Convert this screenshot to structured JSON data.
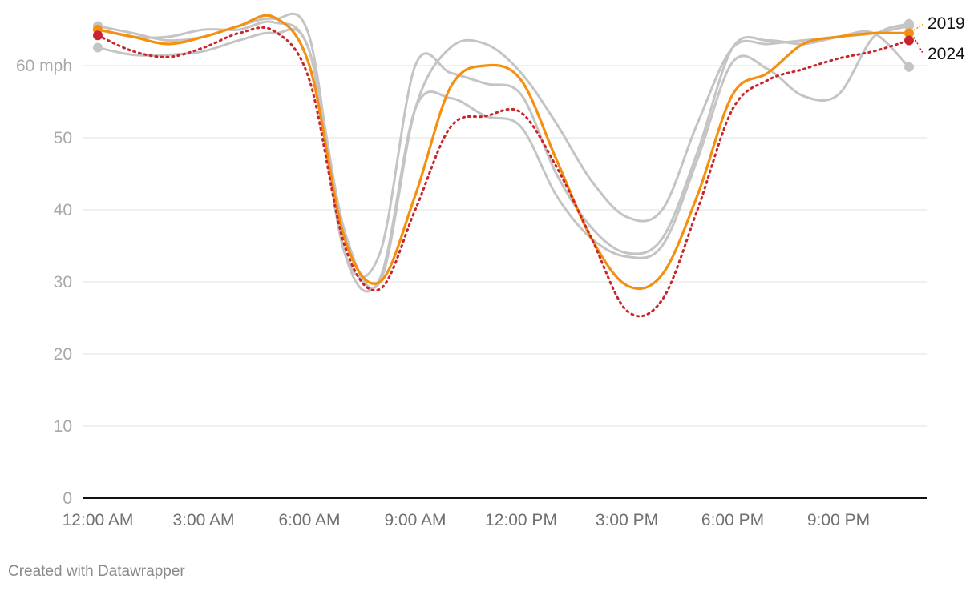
{
  "chart_data": {
    "type": "line",
    "y_unit_suffix": " mph",
    "ylim": [
      0,
      70
    ],
    "y_ticks": [
      0,
      10,
      20,
      30,
      40,
      50,
      60
    ],
    "x_ticks": [
      "12:00 AM",
      "3:00 AM",
      "6:00 AM",
      "9:00 AM",
      "12:00 PM",
      "3:00 PM",
      "6:00 PM",
      "9:00 PM"
    ],
    "x_hours": [
      0,
      1,
      2,
      3,
      4,
      5,
      6,
      7,
      8,
      9,
      10,
      11,
      12,
      13,
      14,
      15,
      16,
      17,
      18,
      19,
      20,
      21,
      22,
      23
    ],
    "grid": true,
    "colors": {
      "highlight": "#f5900e",
      "current": "#c8252c",
      "other": "#c4c4c4"
    },
    "series": [
      {
        "values": [
          65.5,
          64.5,
          63.5,
          64.0,
          65.5,
          66.5,
          64.0,
          34.0,
          30.5,
          54.0,
          55.5,
          53.0,
          51.5,
          42.0,
          36.0,
          33.5,
          35.0,
          47.0,
          60.5,
          59.5,
          55.8,
          56.0,
          64.0,
          65.8
        ],
        "style": "other"
      },
      {
        "values": [
          62.5,
          61.5,
          61.5,
          62.0,
          63.5,
          64.5,
          62.0,
          34.0,
          34.0,
          60.0,
          59.0,
          57.5,
          56.0,
          45.0,
          37.5,
          34.0,
          36.0,
          48.0,
          62.5,
          63.5,
          63.0,
          64.0,
          64.5,
          59.8
        ],
        "style": "other"
      },
      {
        "values": [
          65.0,
          64.0,
          64.0,
          65.0,
          65.0,
          66.0,
          62.0,
          37.0,
          30.0,
          54.0,
          62.5,
          63.0,
          59.0,
          52.0,
          44.0,
          39.0,
          40.0,
          52.0,
          62.5,
          63.0,
          63.5,
          64.0,
          64.5,
          65.5
        ],
        "style": "other"
      },
      {
        "name": "2019",
        "values": [
          65.0,
          64.0,
          63.0,
          64.0,
          65.5,
          66.7,
          60.0,
          36.0,
          30.0,
          42.0,
          57.0,
          60.0,
          58.0,
          47.0,
          36.0,
          29.5,
          31.0,
          42.0,
          56.0,
          59.0,
          63.0,
          64.0,
          64.5,
          64.5
        ],
        "style": "highlight"
      },
      {
        "name": "2024",
        "values": [
          64.2,
          62.0,
          61.2,
          62.5,
          64.5,
          64.8,
          58.0,
          35.0,
          29.0,
          40.0,
          51.5,
          53.0,
          53.5,
          46.0,
          36.0,
          26.0,
          27.5,
          40.0,
          54.0,
          58.0,
          59.5,
          61.0,
          62.0,
          63.5
        ],
        "style": "current"
      }
    ]
  },
  "footer": {
    "credit": "Created with Datawrapper"
  }
}
